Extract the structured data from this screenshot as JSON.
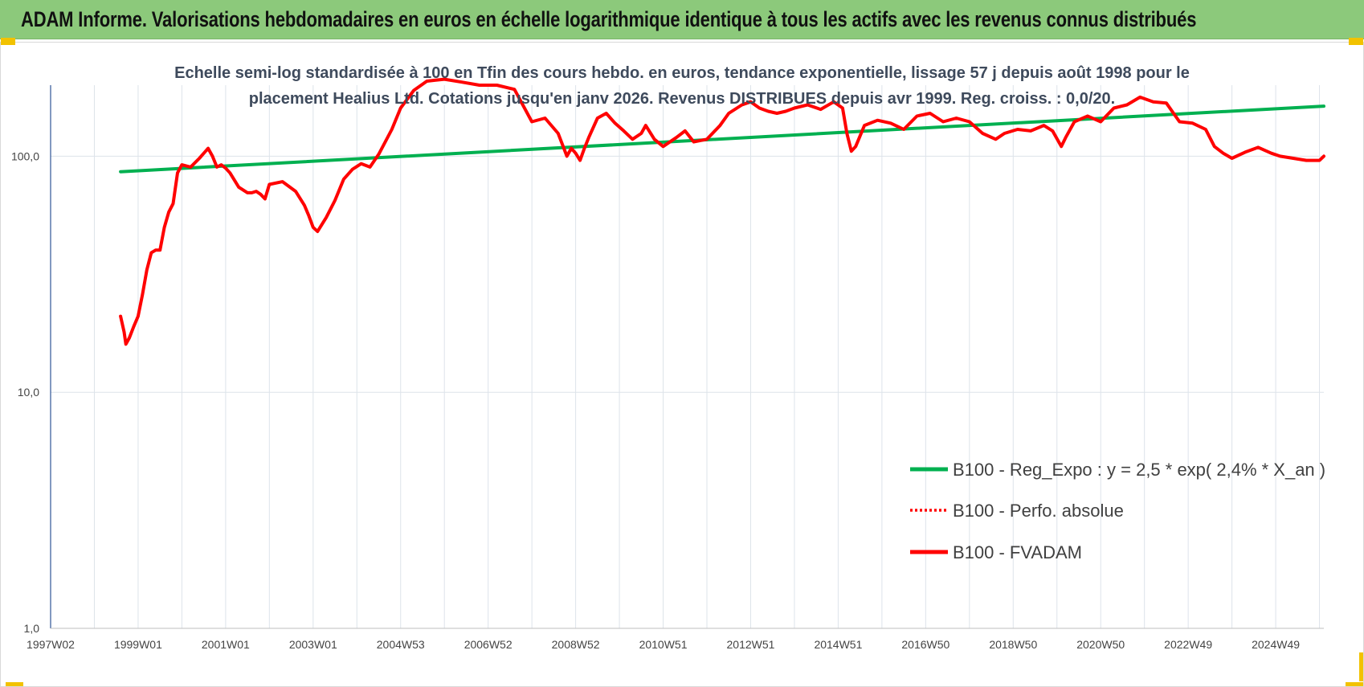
{
  "header": {
    "title": "ADAM Informe. Valorisations hebdomadaires en euros en échelle logarithmique identique à tous les actifs avec les revenus connus distribués",
    "accent_color": "#8cc97b",
    "corner_color": "#f2c200"
  },
  "chart_data": {
    "type": "line",
    "title": "Echelle semi-log standardisée à 100 en Tfin des cours hebdo. en euros, tendance exponentielle, lissage 57 j depuis août 1998 pour le placement Healius Ltd. Cotations jusqu'en janv 2026. Revenus DISTRIBUES depuis avr 1999. Reg. croiss. : 0,0/20.",
    "title_lines": [
      "Echelle semi-log standardisée à 100 en Tfin des cours hebdo. en euros, tendance exponentielle, lissage 57 j depuis août 1998 pour le",
      "placement Healius Ltd. Cotations jusqu'en janv 2026. Revenus DISTRIBUES  depuis avr 1999. Reg. croiss. : 0,0/20."
    ],
    "y_scale": "log",
    "ylim": [
      1,
      200
    ],
    "y_ticks": [
      1,
      10,
      100
    ],
    "y_tick_labels": [
      "1,0",
      "10,0",
      "100,0"
    ],
    "x_range": [
      1997.0,
      2026.1
    ],
    "x_tick_labels": [
      "1997W02",
      "1999W01",
      "2001W01",
      "2003W01",
      "2004W53",
      "2006W52",
      "2008W52",
      "2010W51",
      "2012W51",
      "2014W51",
      "2016W50",
      "2018W50",
      "2020W50",
      "2022W49",
      "2024W49"
    ],
    "x_tick_years": [
      1997,
      1999,
      2001,
      2003,
      2005,
      2007,
      2009,
      2011,
      2013,
      2015,
      2017,
      2019,
      2021,
      2023,
      2025
    ],
    "grid": true,
    "legend_position": "center-right",
    "series": [
      {
        "name": "B100 - Reg_Expo : y = 2,5 * exp( 2,4% *  X_an )",
        "color": "#00b050",
        "style": "solid",
        "x": [
          1998.6,
          2026.1
        ],
        "y": [
          86,
          163
        ]
      },
      {
        "name": "B100 - Perfo. absolue",
        "color": "#ff0000",
        "style": "dotted",
        "x": [],
        "y": []
      },
      {
        "name": "B100 - FVADAM",
        "color": "#ff0000",
        "style": "solid",
        "x": [
          1998.6,
          1998.68,
          1998.72,
          1998.8,
          1998.9,
          1999.0,
          1999.1,
          1999.2,
          1999.3,
          1999.4,
          1999.5,
          1999.6,
          1999.7,
          1999.8,
          1999.9,
          2000.0,
          2000.2,
          2000.4,
          2000.6,
          2000.7,
          2000.8,
          2000.9,
          2001.0,
          2001.1,
          2001.3,
          2001.5,
          2001.6,
          2001.7,
          2001.8,
          2001.9,
          2002.0,
          2002.3,
          2002.6,
          2002.8,
          2002.9,
          2003.0,
          2003.1,
          2003.3,
          2003.5,
          2003.7,
          2003.9,
          2004.1,
          2004.3,
          2004.5,
          2004.8,
          2005.0,
          2005.3,
          2005.6,
          2005.8,
          2006.0,
          2006.4,
          2006.8,
          2007.2,
          2007.6,
          2008.0,
          2008.3,
          2008.6,
          2008.8,
          2008.9,
          2009.0,
          2009.1,
          2009.2,
          2009.3,
          2009.5,
          2009.7,
          2009.9,
          2010.1,
          2010.3,
          2010.5,
          2010.6,
          2010.8,
          2011.0,
          2011.3,
          2011.5,
          2011.7,
          2012.0,
          2012.3,
          2012.5,
          2012.8,
          2013.0,
          2013.2,
          2013.4,
          2013.6,
          2013.8,
          2014.0,
          2014.3,
          2014.6,
          2014.9,
          2015.1,
          2015.2,
          2015.3,
          2015.4,
          2015.6,
          2015.9,
          2016.2,
          2016.5,
          2016.8,
          2017.1,
          2017.4,
          2017.7,
          2018.0,
          2018.3,
          2018.6,
          2018.8,
          2019.1,
          2019.4,
          2019.7,
          2019.9,
          2020.1,
          2020.2,
          2020.4,
          2020.7,
          2021.0,
          2021.3,
          2021.6,
          2021.9,
          2022.2,
          2022.5,
          2022.8,
          2023.1,
          2023.4,
          2023.6,
          2023.8,
          2024.0,
          2024.3,
          2024.6,
          2024.9,
          2025.1,
          2025.4,
          2025.7,
          2026.0,
          2026.1
        ],
        "y": [
          21,
          18,
          16,
          17,
          19,
          21,
          26,
          33,
          39,
          40,
          40,
          50,
          58,
          63,
          85,
          92,
          90,
          98,
          108,
          100,
          90,
          92,
          89,
          85,
          74,
          70,
          70,
          71,
          69,
          66,
          76,
          78,
          71,
          62,
          56,
          50,
          48,
          55,
          65,
          80,
          88,
          93,
          90,
          102,
          130,
          160,
          190,
          208,
          210,
          212,
          206,
          200,
          200,
          192,
          140,
          145,
          125,
          100,
          108,
          103,
          96,
          108,
          120,
          145,
          152,
          138,
          128,
          118,
          125,
          135,
          118,
          110,
          120,
          128,
          115,
          118,
          135,
          152,
          165,
          170,
          160,
          155,
          152,
          155,
          160,
          165,
          158,
          170,
          160,
          125,
          105,
          110,
          135,
          142,
          138,
          130,
          148,
          152,
          140,
          145,
          140,
          125,
          118,
          125,
          130,
          128,
          135,
          128,
          110,
          120,
          140,
          148,
          140,
          160,
          165,
          178,
          170,
          168,
          140,
          138,
          130,
          110,
          103,
          98,
          104,
          109,
          103,
          100,
          98,
          96,
          96,
          100
        ]
      }
    ]
  }
}
